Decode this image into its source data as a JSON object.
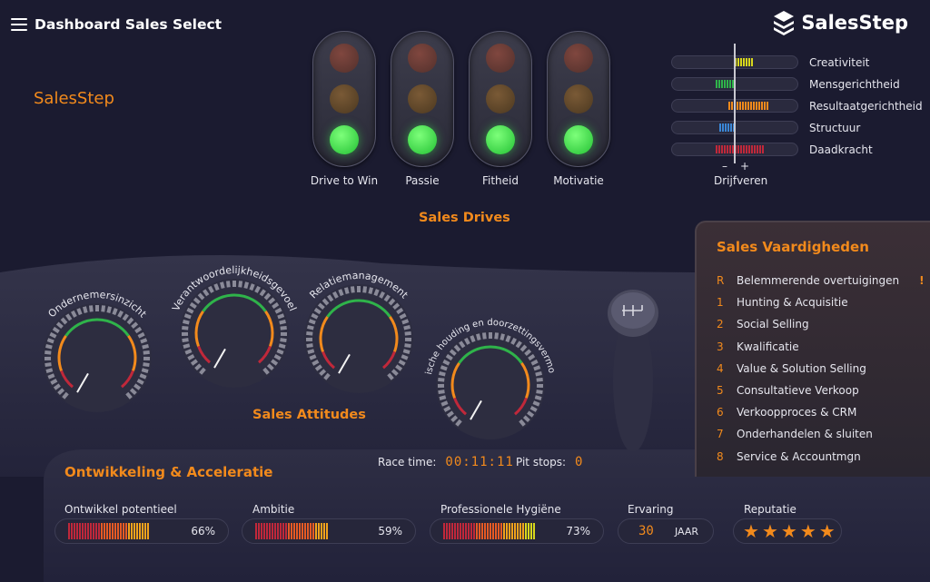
{
  "header": {
    "title": "Dashboard Sales Select",
    "brand": "SalesStep"
  },
  "side_brand": "SalesStep",
  "drives": {
    "title": "Sales Drives",
    "lights": [
      {
        "label": "Drive to Win",
        "state": "green"
      },
      {
        "label": "Passie",
        "state": "green"
      },
      {
        "label": "Fitheid",
        "state": "green"
      },
      {
        "label": "Motivatie",
        "state": "green"
      }
    ]
  },
  "drivers": {
    "caption": "Drijfveren",
    "minus": "–",
    "plus": "+",
    "items": [
      {
        "label": "Creativiteit",
        "color": "#d8d81c",
        "from": 0.0,
        "to": 0.3
      },
      {
        "label": "Mensgerichtheid",
        "color": "#2fb34a",
        "from": -0.3,
        "to": 0.0
      },
      {
        "label": "Resultaatgerichtheid",
        "color": "#f28a1c",
        "from": -0.1,
        "to": 0.55
      },
      {
        "label": "Structuur",
        "color": "#3a86d6",
        "from": -0.25,
        "to": 0.0
      },
      {
        "label": "Daadkracht",
        "color": "#c0283a",
        "from": -0.3,
        "to": 0.45
      }
    ]
  },
  "attitudes": {
    "title": "Sales Attitudes",
    "gauges": [
      {
        "label": "Ondernemersinzicht"
      },
      {
        "label": "Verantwoordelijkheidsgevoel"
      },
      {
        "label": "Relatiemanagement"
      },
      {
        "label": "Kritische houding en doorzettingsvermogen"
      }
    ]
  },
  "vaardigheden": {
    "title": "Sales Vaardigheden",
    "items": [
      {
        "num": "R",
        "label": "Belemmerende overtuigingen",
        "flag": "!"
      },
      {
        "num": "1",
        "label": "Hunting & Acquisitie",
        "flag": ""
      },
      {
        "num": "2",
        "label": "Social Selling",
        "flag": ""
      },
      {
        "num": "3",
        "label": "Kwalificatie",
        "flag": ""
      },
      {
        "num": "4",
        "label": "Value & Solution Selling",
        "flag": ""
      },
      {
        "num": "5",
        "label": "Consultatieve Verkoop",
        "flag": ""
      },
      {
        "num": "6",
        "label": "Verkoopproces & CRM",
        "flag": ""
      },
      {
        "num": "7",
        "label": "Onderhandelen & sluiten",
        "flag": ""
      },
      {
        "num": "8",
        "label": "Service & Accountmgn",
        "flag": ""
      }
    ]
  },
  "race": {
    "time_label": "Race time:",
    "time_value": "00:11:11",
    "pit_label": "Pit stops:",
    "pit_value": "0"
  },
  "ontwikkeling": {
    "title": "Ontwikkeling & Acceleratie",
    "potentieel": {
      "label": "Ontwikkel potentieel",
      "value": 0.66,
      "pct": "66%"
    },
    "ambitie": {
      "label": "Ambitie",
      "value": 0.59,
      "pct": "59%"
    },
    "hygiene": {
      "label": "Professionele Hygiëne",
      "value": 0.73,
      "pct": "73%"
    },
    "ervaring": {
      "label": "Ervaring",
      "value": "30",
      "unit": "JAAR"
    },
    "reputatie": {
      "label": "Reputatie",
      "stars": 5
    }
  },
  "colors": {
    "accent": "#f28a1c",
    "background": "#1b1b30"
  }
}
